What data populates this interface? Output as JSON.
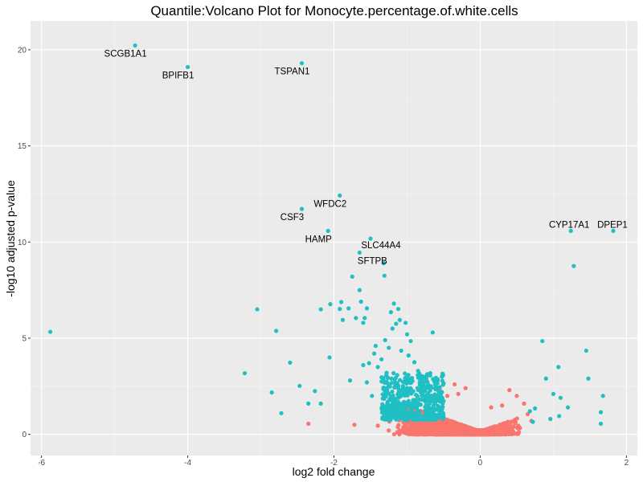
{
  "chart_data": {
    "type": "scatter",
    "title": "Quantile:Volcano Plot for Monocyte.percentage.of.white.cells",
    "xlabel": "log2 fold change",
    "ylabel": "-log10 adjusted p-value",
    "xlim": [
      -6.15,
      2.15
    ],
    "ylim": [
      -1.1,
      21.5
    ],
    "xticks": [
      -6,
      -4,
      -2,
      0,
      2
    ],
    "yticks": [
      0,
      5,
      10,
      15,
      20
    ],
    "grid": true,
    "legend": "none",
    "colors": {
      "background": "#ebebeb",
      "grid_major": "#ffffff",
      "grid_minor": "#f5f5f5",
      "significant": "#1fbfc4",
      "not_significant": "#f8766d"
    },
    "labeled_points": [
      {
        "label": "SCGB1A1",
        "x": -4.72,
        "y": 20.22
      },
      {
        "label": "BPIFB1",
        "x": -4.0,
        "y": 19.1
      },
      {
        "label": "TSPAN1",
        "x": -2.44,
        "y": 19.3
      },
      {
        "label": "WFDC2",
        "x": -1.92,
        "y": 12.42
      },
      {
        "label": "CSF3",
        "x": -2.44,
        "y": 11.72
      },
      {
        "label": "HAMP",
        "x": -2.08,
        "y": 10.58
      },
      {
        "label": "SLC44A4",
        "x": -1.5,
        "y": 10.18
      },
      {
        "label": "SFTPB",
        "x": -1.65,
        "y": 9.45
      },
      {
        "label": "CYP17A1",
        "x": 1.24,
        "y": 10.58
      },
      {
        "label": "DPEP1",
        "x": 1.82,
        "y": 10.58
      }
    ],
    "significant_points": [
      [
        -5.88,
        5.33
      ],
      [
        -3.05,
        6.5
      ],
      [
        -2.79,
        5.38
      ],
      [
        -3.22,
        3.18
      ],
      [
        -2.6,
        3.73
      ],
      [
        -2.85,
        2.18
      ],
      [
        -2.72,
        1.1
      ],
      [
        -2.47,
        2.52
      ],
      [
        -2.35,
        1.6
      ],
      [
        -2.26,
        2.25
      ],
      [
        -2.18,
        1.6
      ],
      [
        -2.18,
        6.5
      ],
      [
        -2.06,
        4.0
      ],
      [
        -2.05,
        6.77
      ],
      [
        -1.92,
        6.52
      ],
      [
        -1.9,
        6.88
      ],
      [
        -1.88,
        5.95
      ],
      [
        -1.8,
        6.55
      ],
      [
        -1.78,
        2.8
      ],
      [
        -1.75,
        8.2
      ],
      [
        -1.7,
        6.05
      ],
      [
        -1.65,
        7.5
      ],
      [
        -1.63,
        6.9
      ],
      [
        -1.6,
        5.8
      ],
      [
        -1.58,
        6.05
      ],
      [
        -1.55,
        6.55
      ],
      [
        -1.52,
        3.7
      ],
      [
        -1.55,
        2.7
      ],
      [
        -1.48,
        2.0
      ],
      [
        -1.43,
        4.6
      ],
      [
        -1.32,
        8.9
      ],
      [
        -1.31,
        8.25
      ],
      [
        -1.3,
        4.9
      ],
      [
        -1.25,
        4.5
      ],
      [
        -1.22,
        6.35
      ],
      [
        -1.2,
        5.5
      ],
      [
        -1.18,
        6.8
      ],
      [
        -1.15,
        5.75
      ],
      [
        -1.12,
        6.52
      ],
      [
        -1.1,
        5.95
      ],
      [
        -1.08,
        4.35
      ],
      [
        -1.02,
        5.8
      ],
      [
        -1.0,
        5.2
      ],
      [
        -0.98,
        4.1
      ],
      [
        -0.95,
        4.85
      ],
      [
        -0.9,
        3.75
      ],
      [
        -0.85,
        3.3
      ],
      [
        -0.8,
        3.0
      ],
      [
        -0.65,
        5.3
      ],
      [
        -0.62,
        2.4
      ],
      [
        -1.4,
        3.5
      ],
      [
        -1.35,
        3.9
      ],
      [
        -1.28,
        3.2
      ],
      [
        -1.6,
        3.6
      ],
      [
        -1.45,
        4.2
      ],
      [
        0.68,
        1.2
      ],
      [
        0.72,
        0.65
      ],
      [
        0.85,
        4.85
      ],
      [
        0.9,
        2.9
      ],
      [
        1.0,
        2.1
      ],
      [
        1.07,
        3.5
      ],
      [
        1.1,
        1.9
      ],
      [
        1.2,
        1.4
      ],
      [
        1.28,
        8.75
      ],
      [
        1.45,
        4.35
      ],
      [
        1.48,
        2.9
      ],
      [
        1.68,
        2.0
      ],
      [
        1.65,
        1.15
      ],
      [
        1.65,
        0.55
      ],
      [
        1.08,
        0.95
      ],
      [
        0.75,
        1.35
      ],
      [
        0.96,
        0.8
      ]
    ],
    "significant_dense_region": {
      "x": [
        -1.35,
        -0.5
      ],
      "y": [
        0.75,
        3.2
      ],
      "count": 480
    },
    "not_significant_points": [
      [
        -2.35,
        0.55
      ],
      [
        -1.72,
        0.5
      ],
      [
        -1.3,
        0.9
      ],
      [
        -1.05,
        1.35
      ],
      [
        -0.85,
        1.6
      ],
      [
        -0.75,
        1.85
      ],
      [
        -0.55,
        2.3
      ],
      [
        -0.35,
        2.6
      ],
      [
        -0.3,
        2.1
      ],
      [
        -0.2,
        2.4
      ],
      [
        0.4,
        2.3
      ],
      [
        0.5,
        2.0
      ],
      [
        0.6,
        1.6
      ],
      [
        0.65,
        1.05
      ],
      [
        0.7,
        0.7
      ],
      [
        -1.4,
        0.45
      ],
      [
        -1.25,
        0.2
      ],
      [
        0.3,
        1.5
      ],
      [
        0.15,
        1.4
      ],
      [
        -0.45,
        2.0
      ]
    ],
    "not_significant_dense_region": {
      "x": [
        -1.35,
        0.7
      ],
      "y": [
        0.0,
        2.2
      ],
      "count": 5500
    }
  }
}
